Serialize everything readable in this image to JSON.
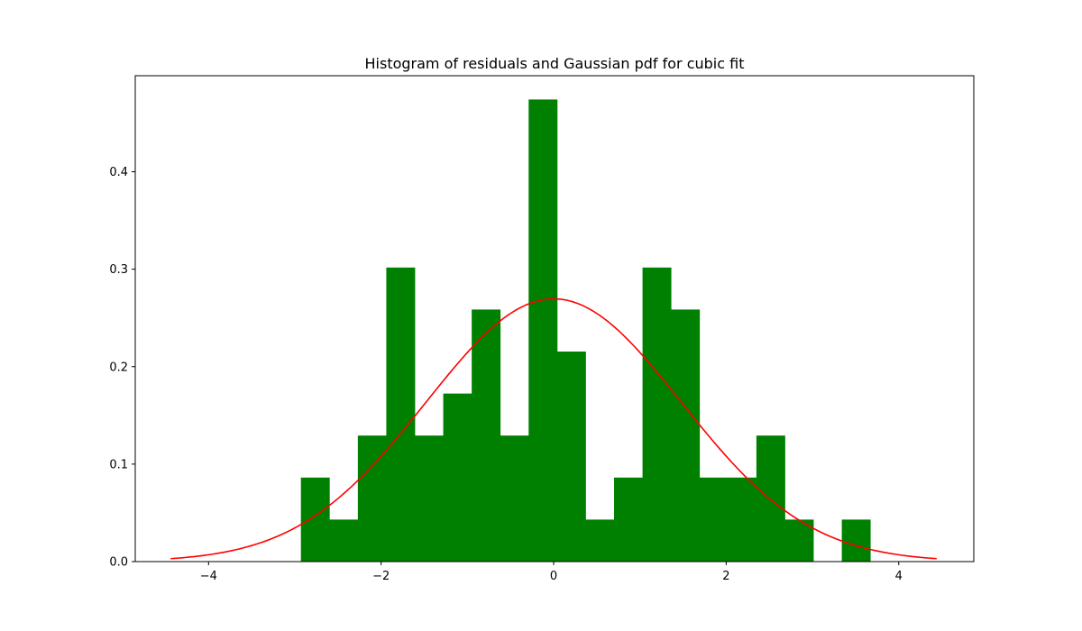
{
  "chart_data": {
    "type": "bar",
    "title": "Histogram of residuals and Gaussian pdf for cubic fit",
    "xlabel": "",
    "ylabel": "",
    "xlim": [
      -4.85,
      4.87
    ],
    "ylim": [
      0,
      0.4985
    ],
    "grid": false,
    "legend": "none",
    "bins": {
      "edges": [
        -2.93,
        -2.6,
        -2.27,
        -1.94,
        -1.61,
        -1.28,
        -0.95,
        -0.62,
        -0.29,
        0.04,
        0.37,
        0.7,
        1.03,
        1.36,
        1.69,
        2.02,
        2.35,
        2.68,
        3.01,
        3.34,
        3.67
      ],
      "values": [
        0.0862,
        0.0431,
        0.1293,
        0.3017,
        0.1293,
        0.1724,
        0.2586,
        0.1293,
        0.4741,
        0.2155,
        0.0431,
        0.0862,
        0.3017,
        0.2586,
        0.0862,
        0.0862,
        0.1293,
        0.0431,
        0.0,
        0.0431
      ]
    },
    "gaussian": {
      "mean": 0.0,
      "std": 1.48,
      "x_range": [
        -4.44,
        4.44
      ]
    },
    "x_ticks": [
      -4,
      -2,
      0,
      2,
      4
    ],
    "x_tick_labels": [
      "−4",
      "−2",
      "0",
      "2",
      "4"
    ],
    "y_ticks": [
      0.0,
      0.1,
      0.2,
      0.3,
      0.4
    ],
    "y_tick_labels": [
      "0.0",
      "0.1",
      "0.2",
      "0.3",
      "0.4"
    ],
    "colors": {
      "bars": "#008000",
      "curve": "#ff0000"
    }
  }
}
